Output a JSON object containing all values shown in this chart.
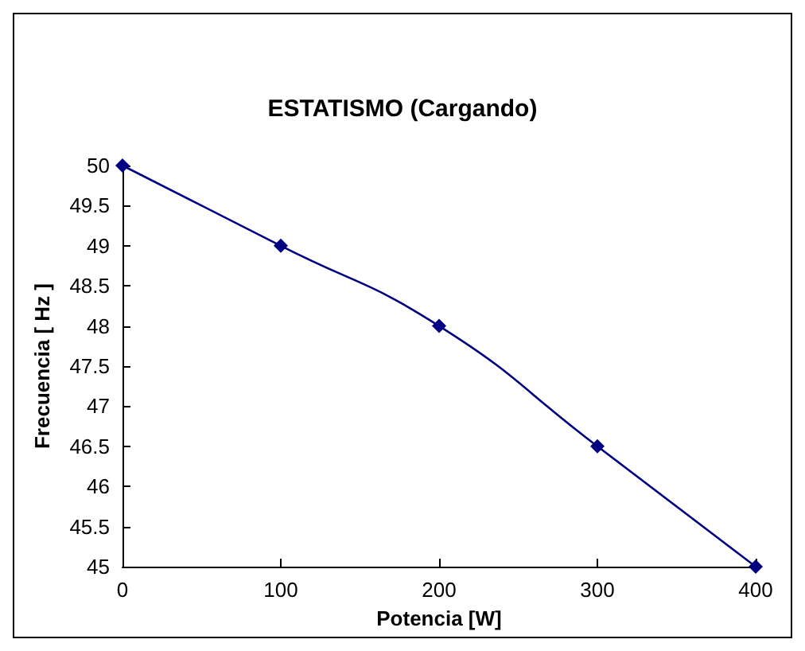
{
  "chart_data": {
    "type": "line",
    "title": "ESTATISMO (Cargando)",
    "xlabel": "Potencia [W]",
    "ylabel": "Frecuencia [ Hz ]",
    "x": [
      0,
      100,
      200,
      300,
      400
    ],
    "series": [
      {
        "color": "#000080",
        "values": [
          50,
          49,
          48,
          46.5,
          45
        ]
      }
    ],
    "xlim": [
      0,
      400
    ],
    "xticks": [
      0,
      100,
      200,
      300,
      400
    ],
    "ylim": [
      45,
      50
    ],
    "yticks": [
      45,
      45.5,
      46,
      46.5,
      47,
      47.5,
      48,
      48.5,
      49,
      49.5,
      50
    ],
    "grid": false,
    "marker": "diamond",
    "line_style": "solid"
  }
}
